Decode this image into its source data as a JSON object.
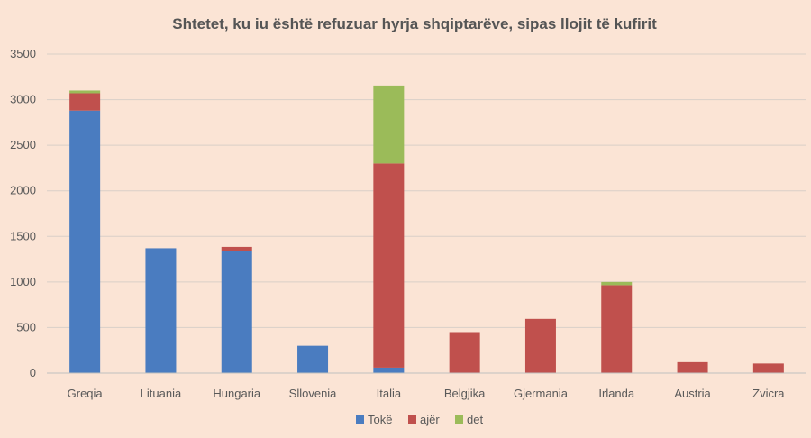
{
  "chart_data": {
    "type": "bar",
    "stacked": true,
    "title": "Shtetet, ku iu është refuzuar hyrja shqiptarëve, sipas llojit të kufirit",
    "xlabel": "",
    "ylabel": "",
    "categories": [
      "Greqia",
      "Lituania",
      "Hungaria",
      "Sllovenia",
      "Italia",
      "Belgjika",
      "Gjermania",
      "Irlanda",
      "Austria",
      "Zvicra"
    ],
    "series": [
      {
        "name": "Tokë",
        "color": "#4a7cc0",
        "values": [
          2880,
          1370,
          1335,
          300,
          60,
          0,
          0,
          0,
          0,
          0
        ]
      },
      {
        "name": "ajër",
        "color": "#c0504d",
        "values": [
          190,
          0,
          50,
          0,
          2240,
          450,
          595,
          965,
          120,
          105
        ]
      },
      {
        "name": "det",
        "color": "#9bbb59",
        "values": [
          30,
          0,
          0,
          0,
          855,
          0,
          0,
          35,
          0,
          0
        ]
      }
    ],
    "ylim": [
      0,
      3500
    ],
    "yticks": [
      0,
      500,
      1000,
      1500,
      2000,
      2500,
      3000,
      3500
    ],
    "grid": true,
    "legend_position": "bottom"
  }
}
